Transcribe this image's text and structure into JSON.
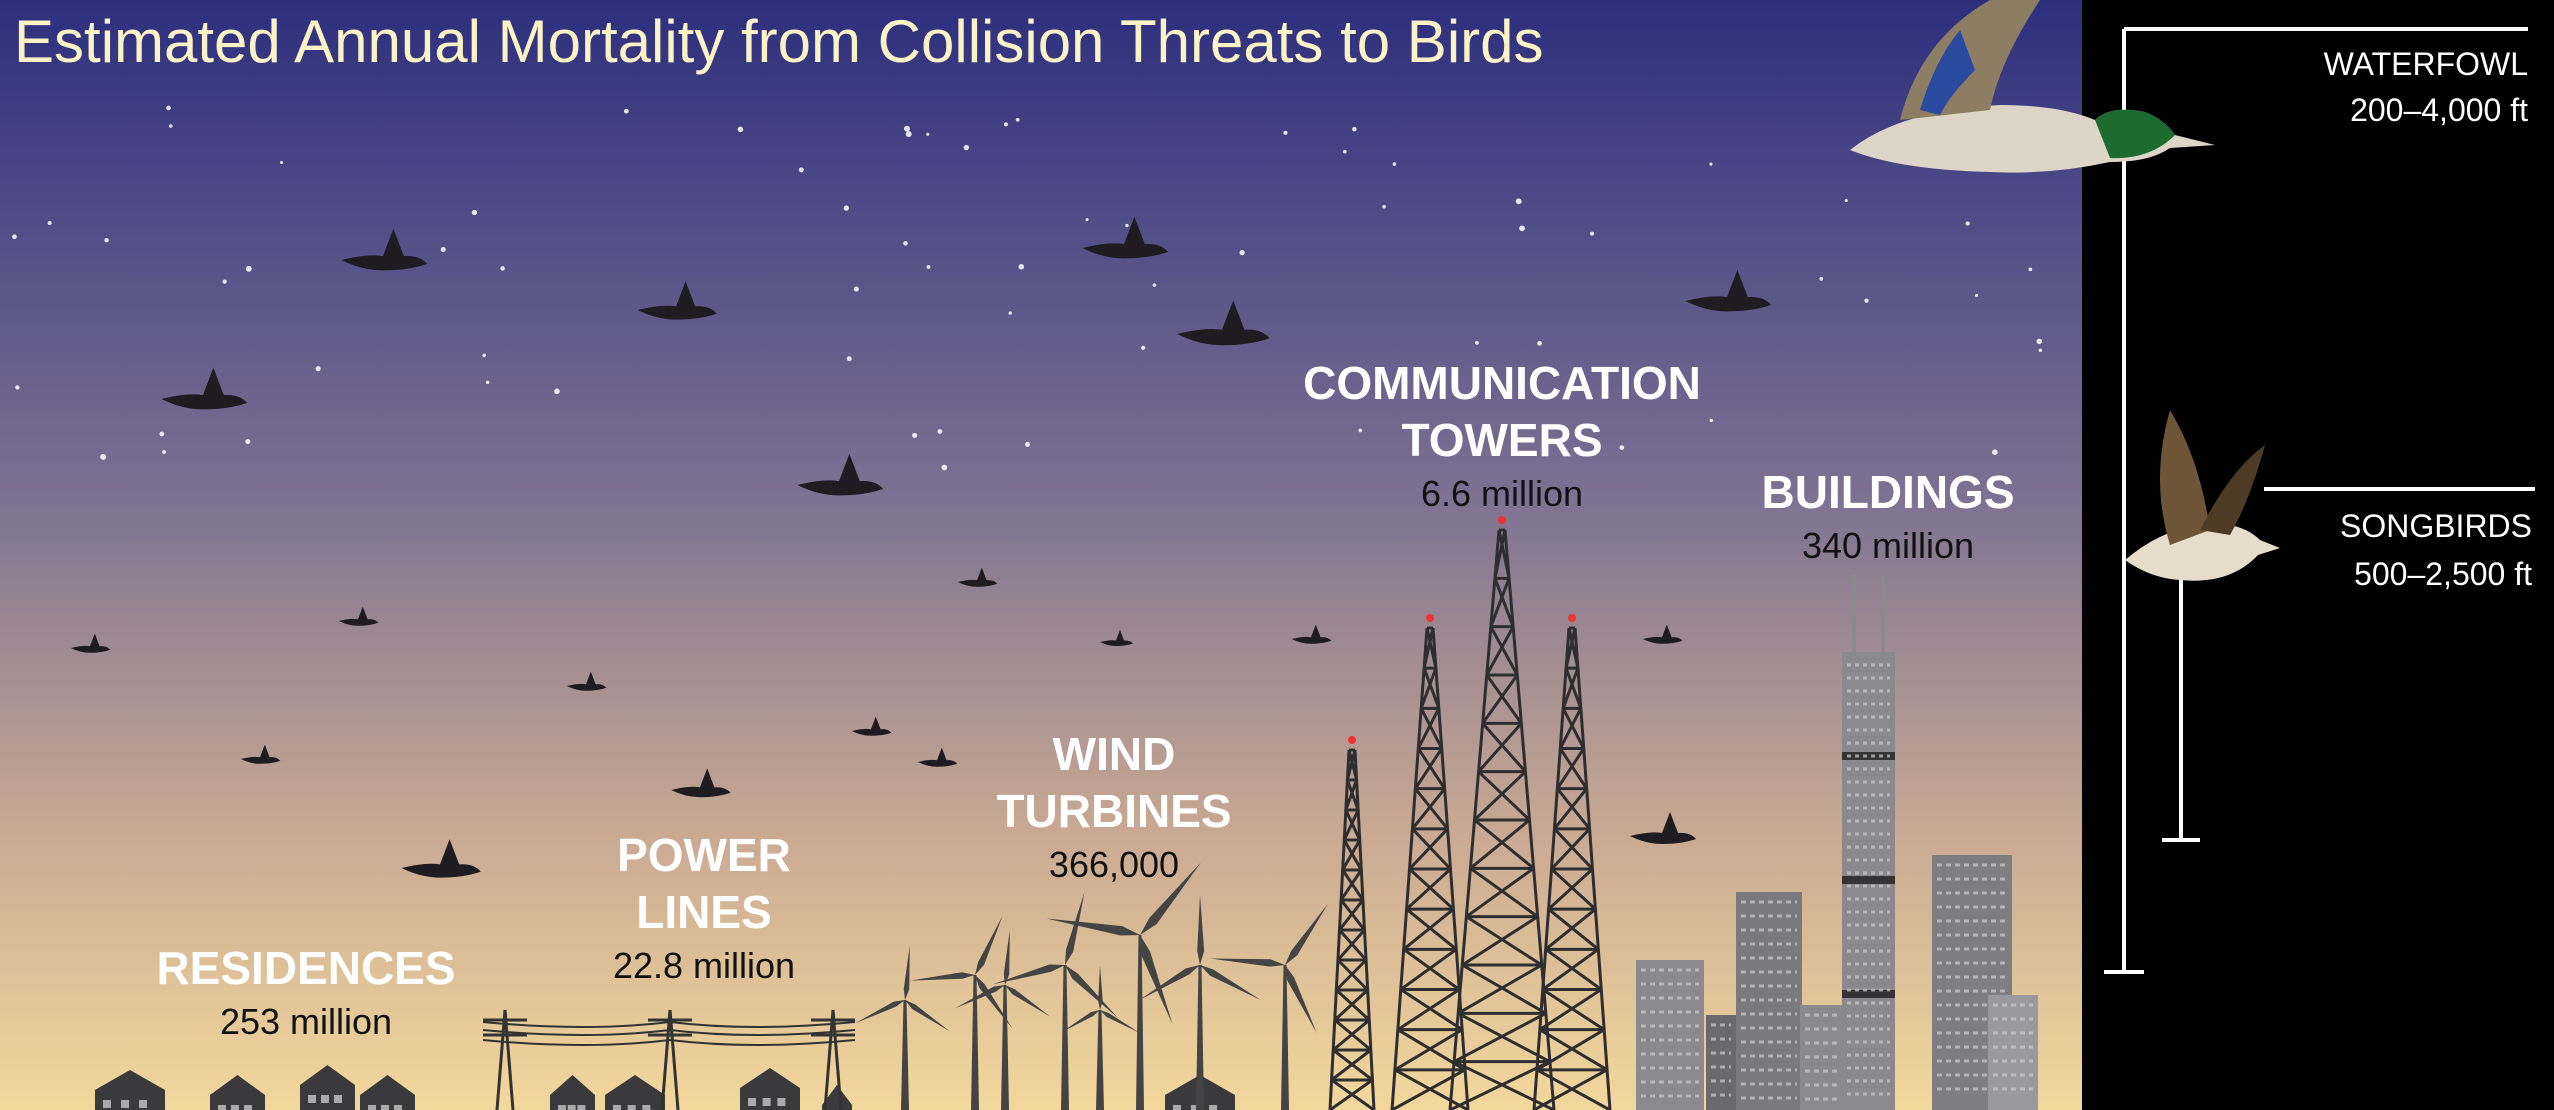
{
  "title": "Estimated Annual Mortality from Collision Threats to Birds",
  "threats": [
    {
      "name_lines": [
        "RESIDENCES"
      ],
      "mortality": "253 million"
    },
    {
      "name_lines": [
        "POWER",
        "LINES"
      ],
      "mortality": "22.8 million"
    },
    {
      "name_lines": [
        "WIND",
        "TURBINES"
      ],
      "mortality": "366,000"
    },
    {
      "name_lines": [
        "COMMUNICATION",
        "TOWERS"
      ],
      "mortality": "6.6 million"
    },
    {
      "name_lines": [
        "BUILDINGS"
      ],
      "mortality": "340 million"
    }
  ],
  "altitudes": [
    {
      "group": "WATERFOWL",
      "range": "200–4,000 ft"
    },
    {
      "group": "SONGBIRDS",
      "range": "500–2,500 ft"
    }
  ]
}
